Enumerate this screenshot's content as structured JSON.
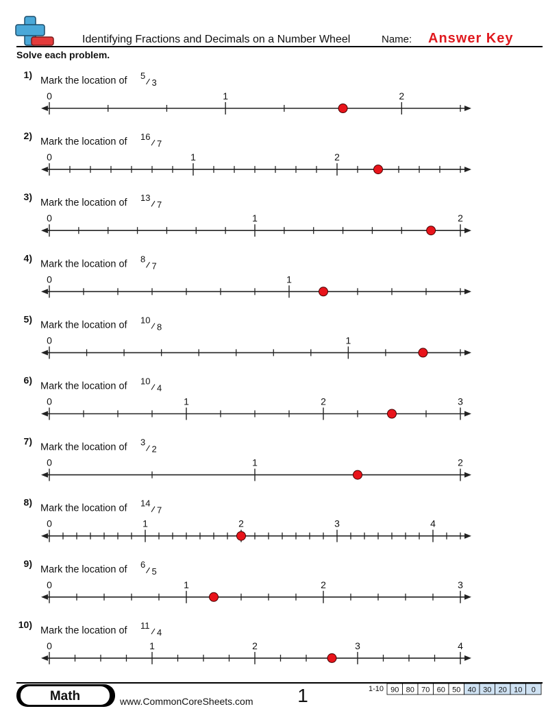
{
  "header": {
    "title": "Identifying Fractions and Decimals on a Number Wheel",
    "name_label": "Name:",
    "answer_key": "Answer Key"
  },
  "instructions": "Solve each problem.",
  "problems": [
    {
      "number": "1)",
      "prompt": "Mark the location of",
      "numerator": 5,
      "denominator": 3,
      "labels": [
        0,
        1,
        2
      ],
      "tick_count": 7
    },
    {
      "number": "2)",
      "prompt": "Mark the location of",
      "numerator": 16,
      "denominator": 7,
      "labels": [
        0,
        1,
        2
      ],
      "tick_count": 20
    },
    {
      "number": "3)",
      "prompt": "Mark the location of",
      "numerator": 13,
      "denominator": 7,
      "labels": [
        0,
        1,
        2
      ],
      "tick_count": 14
    },
    {
      "number": "4)",
      "prompt": "Mark the location of",
      "numerator": 8,
      "denominator": 7,
      "labels": [
        0,
        1
      ],
      "tick_count": 12
    },
    {
      "number": "5)",
      "prompt": "Mark the location of",
      "numerator": 10,
      "denominator": 8,
      "labels": [
        0,
        1
      ],
      "tick_count": 11
    },
    {
      "number": "6)",
      "prompt": "Mark the location of",
      "numerator": 10,
      "denominator": 4,
      "labels": [
        0,
        1,
        2,
        3
      ],
      "tick_count": 12
    },
    {
      "number": "7)",
      "prompt": "Mark the location of",
      "numerator": 3,
      "denominator": 2,
      "labels": [
        0,
        1,
        2
      ],
      "tick_count": 4
    },
    {
      "number": "8)",
      "prompt": "Mark the location of",
      "numerator": 14,
      "denominator": 7,
      "labels": [
        0,
        1,
        2,
        3,
        4
      ],
      "tick_count": 30
    },
    {
      "number": "9)",
      "prompt": "Mark the location of",
      "numerator": 6,
      "denominator": 5,
      "labels": [
        0,
        1,
        2,
        3
      ],
      "tick_count": 15
    },
    {
      "number": "10)",
      "prompt": "Mark the location of",
      "numerator": 11,
      "denominator": 4,
      "labels": [
        0,
        1,
        2,
        3,
        4
      ],
      "tick_count": 16
    }
  ],
  "footer": {
    "subject": "Math",
    "website": "www.CommonCoreSheets.com",
    "page": 1,
    "score_range": "1-10",
    "scores": [
      90,
      80,
      70,
      60,
      50,
      40,
      30,
      20,
      10,
      0
    ]
  }
}
